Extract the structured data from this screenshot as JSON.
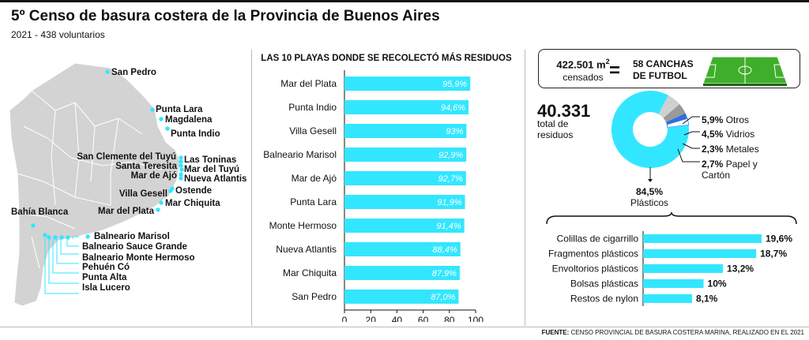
{
  "header": {
    "title": "5º Censo de basura costera de la Provincia de Buenos Aires",
    "subtitle": "2021 - 438 voluntarios"
  },
  "map": {
    "locations": [
      "San Pedro",
      "Punta Lara",
      "Magdalena",
      "Punta Indio",
      "San Clemente del Tuyú",
      "Las Toninas",
      "Santa Teresita",
      "Mar del Tuyú",
      "Mar de Ajó",
      "Nueva Atlantis",
      "Villa Gesell",
      "Ostende",
      "Mar Chiquita",
      "Mar del Plata",
      "Bahía Blanca",
      "Balneario Marisol",
      "Balneario Sauce Grande",
      "Balneario Monte Hermoso",
      "Pehuén Có",
      "Punta Alta",
      "Isla Lucero"
    ],
    "colors": {
      "land": "#d3d3d3",
      "borders": "#ffffff",
      "point": "#33e6ff"
    }
  },
  "area": {
    "value": "422.501 m",
    "exponent": "2",
    "label": "censados",
    "equals": "=",
    "equivalence": "58 CANCHAS DE FUTBOL"
  },
  "total": {
    "value": "40.331",
    "label": "total de residuos"
  },
  "chart_data": [
    {
      "type": "bar",
      "orientation": "horizontal",
      "title": "LAS 10 PLAYAS DONDE SE RECOLECTÓ MÁS RESIDUOS",
      "categories": [
        "Mar del Plata",
        "Punta Indio",
        "Villa Gesell",
        "Balneario Marisol",
        "Mar de Ajó",
        "Punta Lara",
        "Monte Hermoso",
        "Nueva Atlantis",
        "Mar Chiquita",
        "San Pedro"
      ],
      "values": [
        95.9,
        94.6,
        93,
        92.9,
        92.7,
        91.9,
        91.4,
        88.4,
        87.9,
        87.0
      ],
      "value_labels": [
        "95,9%",
        "94,6%",
        "93%",
        "92,9%",
        "92,7%",
        "91,9%",
        "91,4%",
        "88,4%",
        "87,9%",
        "87,0%"
      ],
      "xlim": [
        0,
        100
      ],
      "xticks": [
        "0",
        "20",
        "40",
        "60",
        "80",
        "100"
      ],
      "color": "#33e6ff"
    },
    {
      "type": "pie",
      "donut": true,
      "categories": [
        "Plásticos",
        "Otros",
        "Vidrios",
        "Metales",
        "Papel y Cartón"
      ],
      "values": [
        84.5,
        5.9,
        4.5,
        2.3,
        2.7
      ],
      "value_labels": [
        "84,5%",
        "5,9%",
        "4,5%",
        "2,3%",
        "2,7%"
      ],
      "colors": [
        "#33e6ff",
        "#d0d0d0",
        "#9a9a9a",
        "#2f6fe0",
        "#ffffff"
      ]
    },
    {
      "type": "bar",
      "orientation": "horizontal",
      "categories": [
        "Colillas de cigarrillo",
        "Fragmentos plásticos",
        "Envoltorios plásticos",
        "Bolsas plásticas",
        "Restos de nylon"
      ],
      "values": [
        19.6,
        18.7,
        13.2,
        10,
        8.1
      ],
      "value_labels": [
        "19,6%",
        "18,7%",
        "13,2%",
        "10%",
        "8,1%"
      ],
      "color": "#33e6ff"
    }
  ],
  "source": {
    "label": "FUENTE:",
    "text": "CENSO PROVINCIAL DE BASURA COSTERA MARINA, REALIZADO EN EL 2021"
  }
}
